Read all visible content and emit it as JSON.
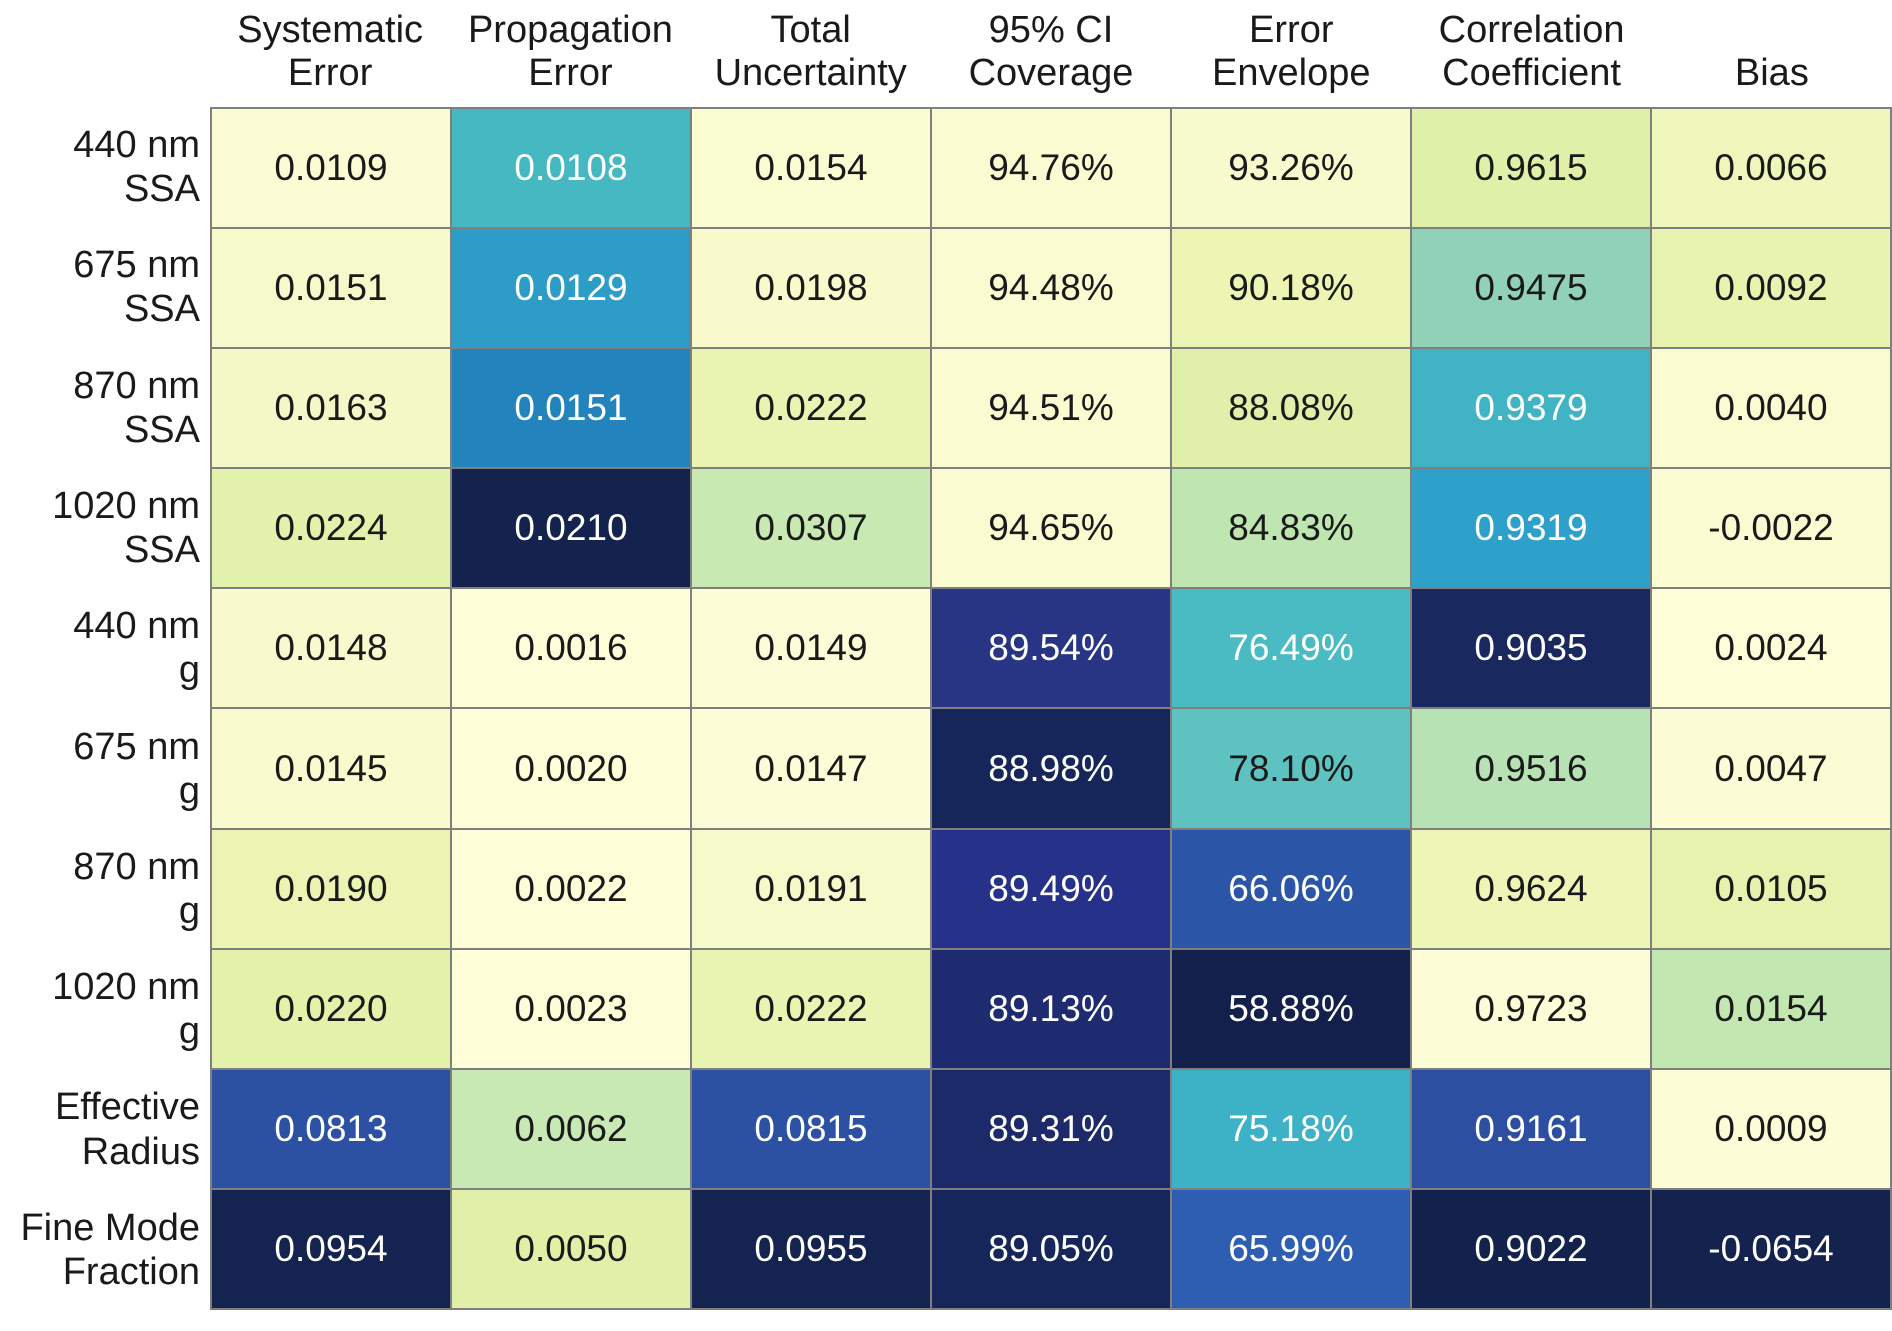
{
  "chart_data": {
    "type": "heatmap",
    "title": "",
    "colormap": "YlGnBu",
    "grid_line_color": "#7f7f7f",
    "legend_position": "none",
    "columns": [
      "Systematic\nError",
      "Propagation\nError",
      "Total\nUncertainty",
      "95% CI\nCoverage",
      "Error\nEnvelope",
      "Correlation\nCoefficient",
      "Bias"
    ],
    "rows": [
      "440 nm\nSSA",
      "675 nm\nSSA",
      "870 nm\nSSA",
      "1020 nm\nSSA",
      "440 nm\ng",
      "675 nm\ng",
      "870 nm\ng",
      "1020 nm\ng",
      "Effective\nRadius",
      "Fine Mode\nFraction"
    ],
    "values": [
      [
        "0.0109",
        "0.0108",
        "0.0154",
        "94.76%",
        "93.26%",
        "0.9615",
        "0.0066"
      ],
      [
        "0.0151",
        "0.0129",
        "0.0198",
        "94.48%",
        "90.18%",
        "0.9475",
        "0.0092"
      ],
      [
        "0.0163",
        "0.0151",
        "0.0222",
        "94.51%",
        "88.08%",
        "0.9379",
        "0.0040"
      ],
      [
        "0.0224",
        "0.0210",
        "0.0307",
        "94.65%",
        "84.83%",
        "0.9319",
        "-0.0022"
      ],
      [
        "0.0148",
        "0.0016",
        "0.0149",
        "89.54%",
        "76.49%",
        "0.9035",
        "0.0024"
      ],
      [
        "0.0145",
        "0.0020",
        "0.0147",
        "88.98%",
        "78.10%",
        "0.9516",
        "0.0047"
      ],
      [
        "0.0190",
        "0.0022",
        "0.0191",
        "89.49%",
        "66.06%",
        "0.9624",
        "0.0105"
      ],
      [
        "0.0220",
        "0.0023",
        "0.0222",
        "89.13%",
        "58.88%",
        "0.9723",
        "0.0154"
      ],
      [
        "0.0813",
        "0.0062",
        "0.0815",
        "89.31%",
        "75.18%",
        "0.9161",
        "0.0009"
      ],
      [
        "0.0954",
        "0.0050",
        "0.0955",
        "89.05%",
        "65.99%",
        "0.9022",
        "-0.0654"
      ]
    ],
    "cell_colors": [
      [
        "#FBFCD3",
        "#46B8C1",
        "#FAFCD2",
        "#FAFBD1",
        "#F7FACD",
        "#DFF0A9",
        "#EFF6BC"
      ],
      [
        "#F6F9C9",
        "#2D9DC7",
        "#F8FACC",
        "#FAFBD0",
        "#ECF5B4",
        "#91D1B7",
        "#E8F3B0"
      ],
      [
        "#F3F8C6",
        "#2383BC",
        "#EAF4B2",
        "#FAFBD0",
        "#E0F0AA",
        "#40B3C5",
        "#FAFBD1"
      ],
      [
        "#E2F1AB",
        "#14224E",
        "#C8E9B2",
        "#FAFBD0",
        "#BFE5B0",
        "#2DA1C9",
        "#FAFBD1"
      ],
      [
        "#F8FACD",
        "#FEFED9",
        "#FCFDD7",
        "#283484",
        "#4ABBC3",
        "#1A2860",
        "#FDFDD8"
      ],
      [
        "#F9FBCF",
        "#FEFED9",
        "#FCFDD6",
        "#17265A",
        "#5EC2C1",
        "#B6E2B4",
        "#FBFCD3"
      ],
      [
        "#EBF4B3",
        "#FDFED8",
        "#F6F9CA",
        "#263289",
        "#2B55A7",
        "#EDF5B7",
        "#E6F2AE"
      ],
      [
        "#E3F1AB",
        "#FDFED8",
        "#EAF4B2",
        "#1F2B70",
        "#12204B",
        "#FCFDD6",
        "#C3E7B1"
      ],
      [
        "#2C51A3",
        "#C9E9B4",
        "#2C51A3",
        "#1D2A69",
        "#3DB2C7",
        "#2C4FA1",
        "#FCFDD7"
      ],
      [
        "#14234F",
        "#E0F0A9",
        "#14234F",
        "#16255A",
        "#2E5EB1",
        "#13224D",
        "#14234E"
      ]
    ],
    "cell_text_colors": [
      [
        "#1a1a1a",
        "#ffffff",
        "#1a1a1a",
        "#1a1a1a",
        "#1a1a1a",
        "#1a1a1a",
        "#1a1a1a"
      ],
      [
        "#1a1a1a",
        "#ffffff",
        "#1a1a1a",
        "#1a1a1a",
        "#1a1a1a",
        "#1a1a1a",
        "#1a1a1a"
      ],
      [
        "#1a1a1a",
        "#ffffff",
        "#1a1a1a",
        "#1a1a1a",
        "#1a1a1a",
        "#ffffff",
        "#1a1a1a"
      ],
      [
        "#1a1a1a",
        "#ffffff",
        "#1a1a1a",
        "#1a1a1a",
        "#1a1a1a",
        "#ffffff",
        "#1a1a1a"
      ],
      [
        "#1a1a1a",
        "#1a1a1a",
        "#1a1a1a",
        "#ffffff",
        "#ffffff",
        "#ffffff",
        "#1a1a1a"
      ],
      [
        "#1a1a1a",
        "#1a1a1a",
        "#1a1a1a",
        "#ffffff",
        "#1a1a1a",
        "#1a1a1a",
        "#1a1a1a"
      ],
      [
        "#1a1a1a",
        "#1a1a1a",
        "#1a1a1a",
        "#ffffff",
        "#ffffff",
        "#1a1a1a",
        "#1a1a1a"
      ],
      [
        "#1a1a1a",
        "#1a1a1a",
        "#1a1a1a",
        "#ffffff",
        "#ffffff",
        "#1a1a1a",
        "#1a1a1a"
      ],
      [
        "#ffffff",
        "#1a1a1a",
        "#ffffff",
        "#ffffff",
        "#ffffff",
        "#ffffff",
        "#1a1a1a"
      ],
      [
        "#ffffff",
        "#1a1a1a",
        "#ffffff",
        "#ffffff",
        "#ffffff",
        "#ffffff",
        "#ffffff"
      ]
    ]
  }
}
